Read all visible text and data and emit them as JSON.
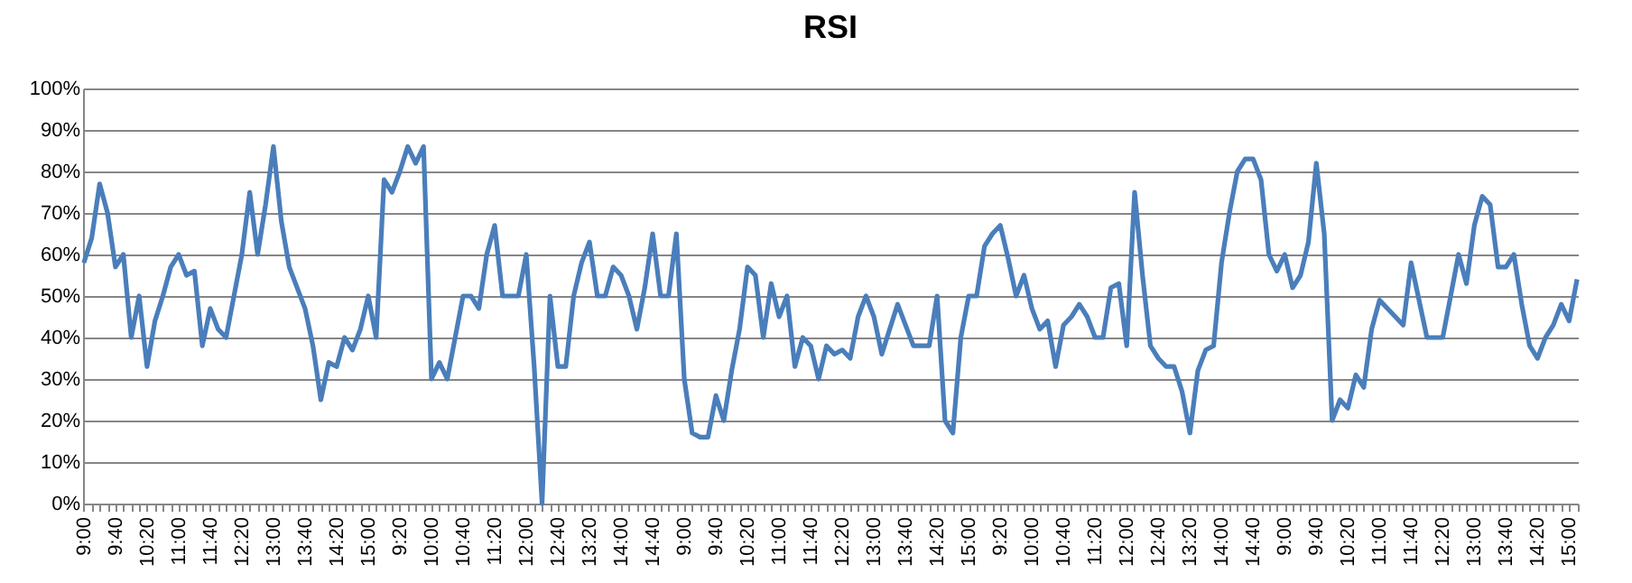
{
  "chart_data": {
    "type": "line",
    "title": "RSI",
    "categories": [
      "9:00",
      null,
      null,
      null,
      "9:40",
      null,
      null,
      null,
      "10:20",
      null,
      null,
      null,
      "11:00",
      null,
      null,
      null,
      "11:40",
      null,
      null,
      null,
      "12:20",
      null,
      null,
      null,
      "13:00",
      null,
      null,
      null,
      "13:40",
      null,
      null,
      null,
      "14:20",
      null,
      null,
      null,
      "15:00",
      null,
      null,
      null,
      "9:20",
      null,
      null,
      null,
      "10:00",
      null,
      null,
      null,
      "10:40",
      null,
      null,
      null,
      "11:20",
      null,
      null,
      null,
      "12:00",
      null,
      null,
      null,
      "12:40",
      null,
      null,
      null,
      "13:20",
      null,
      null,
      null,
      "14:00",
      null,
      null,
      null,
      "14:40",
      null,
      null,
      null,
      "9:00",
      null,
      null,
      null,
      "9:40",
      null,
      null,
      null,
      "10:20",
      null,
      null,
      null,
      "11:00",
      null,
      null,
      null,
      "11:40",
      null,
      null,
      null,
      "12:20",
      null,
      null,
      null,
      "13:00",
      null,
      null,
      null,
      "13:40",
      null,
      null,
      null,
      "14:20",
      null,
      null,
      null,
      "15:00",
      null,
      null,
      null,
      "9:20",
      null,
      null,
      null,
      "10:00",
      null,
      null,
      null,
      "10:40",
      null,
      null,
      null,
      "11:20",
      null,
      null,
      null,
      "12:00",
      null,
      null,
      null,
      "12:40",
      null,
      null,
      null,
      "13:20",
      null,
      null,
      null,
      "14:00",
      null,
      null,
      null,
      "14:40",
      null,
      null,
      null,
      "9:00",
      null,
      null,
      null,
      "9:40",
      null,
      null,
      null,
      "10:20",
      null,
      null,
      null,
      "11:00",
      null,
      null,
      null,
      "11:40",
      null,
      null,
      null,
      "12:20",
      null,
      null,
      null,
      "13:00",
      null,
      null,
      null,
      "13:40",
      null,
      null,
      null,
      "14:20",
      null,
      null,
      null,
      "15:00",
      null
    ],
    "series": [
      {
        "color": "#4a7ebb",
        "values": [
          58,
          64,
          77,
          70,
          57,
          60,
          40,
          50,
          33,
          44,
          50,
          57,
          60,
          55,
          56,
          38,
          47,
          42,
          40,
          50,
          60,
          75,
          60,
          72,
          86,
          68,
          57,
          52,
          47,
          38,
          25,
          34,
          33,
          40,
          37,
          42,
          50,
          40,
          78,
          75,
          80,
          86,
          82,
          86,
          30,
          34,
          30,
          40,
          50,
          50,
          47,
          60,
          67,
          50,
          50,
          50,
          60,
          33,
          0,
          50,
          33,
          33,
          50,
          58,
          63,
          50,
          50,
          57,
          55,
          50,
          42,
          52,
          65,
          50,
          50,
          65,
          30,
          17,
          16,
          16,
          26,
          20,
          32,
          42,
          57,
          55,
          40,
          53,
          45,
          50,
          33,
          40,
          38,
          30,
          38,
          36,
          37,
          35,
          45,
          50,
          45,
          36,
          42,
          48,
          43,
          38,
          38,
          38,
          50,
          20,
          17,
          40,
          50,
          50,
          62,
          65,
          67,
          59,
          50,
          55,
          47,
          42,
          44,
          33,
          43,
          45,
          48,
          45,
          40,
          40,
          52,
          53,
          38,
          75,
          55,
          38,
          35,
          33,
          33,
          27,
          17,
          32,
          37,
          38,
          58,
          70,
          80,
          83,
          83,
          78,
          60,
          56,
          60,
          52,
          55,
          63,
          82,
          65,
          20,
          25,
          23,
          31,
          28,
          42,
          49,
          47,
          45,
          43,
          58,
          49,
          40,
          40,
          40,
          50,
          60,
          53,
          67,
          74,
          72,
          57,
          57,
          60,
          48,
          38,
          35,
          40,
          43,
          48,
          44,
          54
        ]
      }
    ],
    "ylim": [
      0,
      100
    ],
    "yticks": [
      {
        "value": 0,
        "label": "0%"
      },
      {
        "value": 10,
        "label": "10%"
      },
      {
        "value": 20,
        "label": "20%"
      },
      {
        "value": 30,
        "label": "30%"
      },
      {
        "value": 40,
        "label": "40%"
      },
      {
        "value": 50,
        "label": "50%"
      },
      {
        "value": 60,
        "label": "60%"
      },
      {
        "value": 70,
        "label": "70%"
      },
      {
        "value": 80,
        "label": "80%"
      },
      {
        "value": 90,
        "label": "90%"
      },
      {
        "value": 100,
        "label": "100%"
      }
    ],
    "grid": "y",
    "marker": "none",
    "line_style": "solid"
  }
}
